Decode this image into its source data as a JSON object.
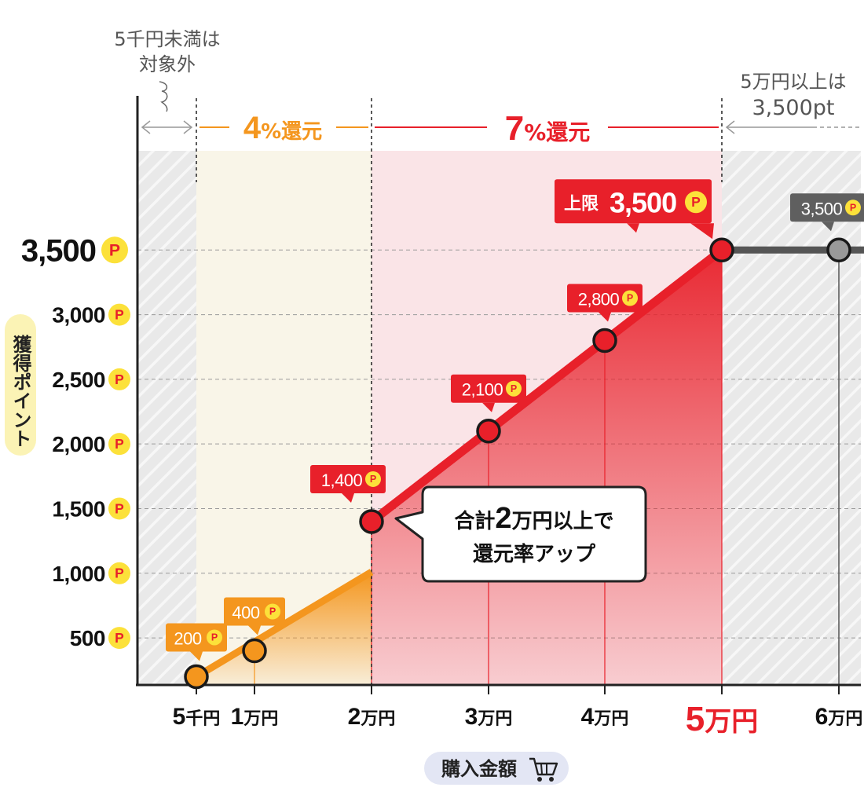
{
  "chart_data": {
    "type": "line",
    "title": "",
    "xlabel": "購入金額",
    "ylabel": "獲得ポイント",
    "ylim": [
      0,
      3500
    ],
    "y_ticks": [
      {
        "value": 500,
        "label": "500"
      },
      {
        "value": 1000,
        "label": "1,000"
      },
      {
        "value": 1500,
        "label": "1,500"
      },
      {
        "value": 2000,
        "label": "2,000"
      },
      {
        "value": 2500,
        "label": "2,500"
      },
      {
        "value": 3000,
        "label": "3,000"
      },
      {
        "value": 3500,
        "label": "3,500"
      }
    ],
    "point_badge": "P",
    "x_ticks": [
      {
        "value": 5000,
        "num": "5",
        "unit": "千円"
      },
      {
        "value": 10000,
        "num": "1",
        "unit": "万円"
      },
      {
        "value": 20000,
        "num": "2",
        "unit": "万円"
      },
      {
        "value": 30000,
        "num": "3",
        "unit": "万円"
      },
      {
        "value": 40000,
        "num": "4",
        "unit": "万円"
      },
      {
        "value": 50000,
        "num": "5",
        "unit": "万円"
      },
      {
        "value": 60000,
        "num": "6",
        "unit": "万円"
      }
    ],
    "series": [
      {
        "segment": "4%",
        "color": "#f4961e",
        "points": [
          {
            "x": 5000,
            "y": 200,
            "label": "200"
          },
          {
            "x": 10000,
            "y": 400,
            "label": "400"
          }
        ]
      },
      {
        "segment": "7%",
        "color": "#e8202a",
        "points": [
          {
            "x": 20000,
            "y": 1400,
            "label": "1,400"
          },
          {
            "x": 30000,
            "y": 2100,
            "label": "2,100"
          },
          {
            "x": 40000,
            "y": 2800,
            "label": "2,800"
          },
          {
            "x": 50000,
            "y": 3500,
            "label": "3,500",
            "prefix": "上限"
          }
        ]
      },
      {
        "segment": "cap",
        "color": "#555555",
        "points": [
          {
            "x": 60000,
            "y": 3500,
            "label": "3,500"
          }
        ]
      }
    ],
    "regions": [
      {
        "from": 5000,
        "to": 20000,
        "rate_num": "4",
        "rate_text": "%還元",
        "color": "#f4961e"
      },
      {
        "from": 20000,
        "to": 50000,
        "rate_num": "7",
        "rate_text": "%還元",
        "color": "#e8202a"
      }
    ],
    "annotations": {
      "below_min": "5千円未満は\n対象外",
      "above_max": "5万円以上は\n3,500pt",
      "callout_line1_pre": "合計",
      "callout_line1_num": "2",
      "callout_line1_post": "万円以上で",
      "callout_line2": "還元率アップ"
    },
    "colors": {
      "orange": "#f4961e",
      "red": "#e8202a",
      "gray": "#555555",
      "coin": "#fce13a"
    }
  }
}
